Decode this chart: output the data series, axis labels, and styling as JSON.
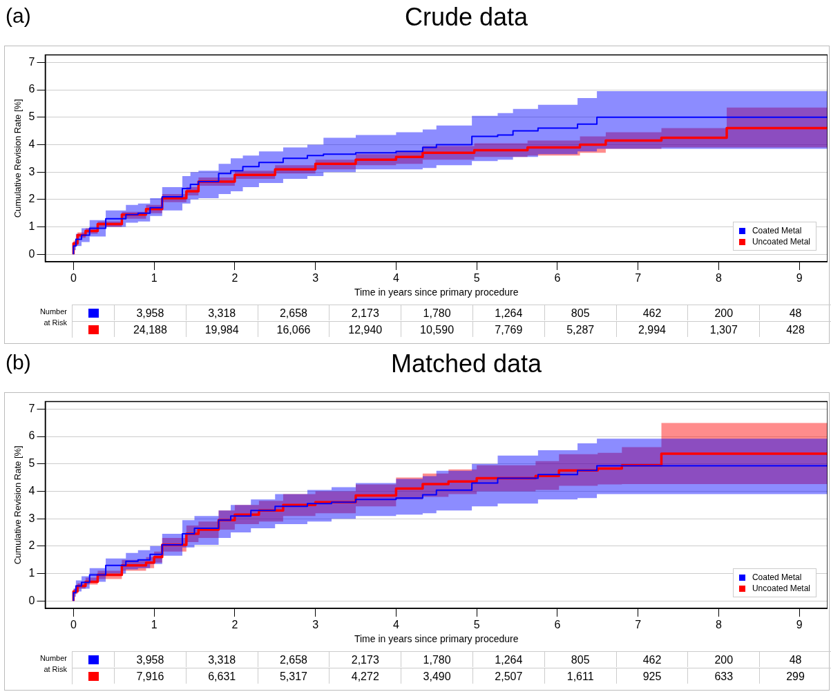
{
  "chart_data": [
    {
      "type": "step",
      "title": "Crude data",
      "xlabel": "Time in years since primary procedure",
      "ylabel": "Cumulative Revision Rate [%]",
      "xlim": [
        -0.35,
        9.35
      ],
      "xticks": [
        0,
        1,
        2,
        3,
        4,
        5,
        6,
        7,
        8,
        9
      ],
      "ylim": [
        -0.27,
        7.27
      ],
      "yticks": [
        0,
        1,
        2,
        3,
        4,
        5,
        6,
        7
      ],
      "grid": "y",
      "legend": "bottom right",
      "annotations": [
        "(a)",
        "Number at Risk",
        "3,958",
        "3,318",
        "2,658",
        "2,173",
        "1,780",
        "1,264",
        "805",
        "462",
        "200",
        "48",
        "24,188",
        "19,984",
        "16,066",
        "12,940",
        "10,590",
        "7,769",
        "5,287",
        "2,994",
        "1,307",
        "428"
      ],
      "series": [
        {
          "name": "Coated Metal",
          "color": "#0000ff",
          "x": [
            0,
            0.03,
            0.1,
            0.2,
            0.4,
            0.65,
            0.8,
            0.95,
            1.1,
            1.35,
            1.45,
            1.55,
            1.8,
            1.95,
            2.1,
            2.3,
            2.6,
            2.9,
            3.1,
            3.5,
            4.0,
            4.33,
            4.5,
            4.94,
            5.26,
            5.45,
            5.76,
            6.25,
            6.49,
            6.83,
            9.35
          ],
          "values": [
            0,
            0.3,
            0.55,
            0.7,
            0.95,
            1.3,
            1.45,
            1.5,
            1.7,
            2.1,
            2.4,
            2.55,
            2.65,
            2.95,
            3.05,
            3.2,
            3.35,
            3.5,
            3.6,
            3.65,
            3.7,
            3.75,
            3.9,
            4.0,
            4.3,
            4.35,
            4.5,
            4.6,
            4.75,
            5.0,
            5.0
          ],
          "lower": [
            0,
            0.15,
            0.3,
            0.45,
            0.65,
            1.0,
            1.15,
            1.2,
            1.4,
            1.6,
            1.85,
            2.0,
            2.05,
            2.2,
            2.3,
            2.45,
            2.6,
            2.75,
            2.85,
            3.0,
            3.1,
            3.1,
            3.15,
            3.25,
            3.4,
            3.45,
            3.55,
            3.65,
            3.75,
            3.85,
            3.85
          ],
          "upper": [
            0,
            0.45,
            0.75,
            0.95,
            1.25,
            1.6,
            1.8,
            1.85,
            2.05,
            2.45,
            2.85,
            3.0,
            3.05,
            3.3,
            3.5,
            3.6,
            3.75,
            3.9,
            4.0,
            4.25,
            4.35,
            4.45,
            4.55,
            4.7,
            5.05,
            5.15,
            5.3,
            5.45,
            5.7,
            5.95,
            5.95
          ]
        },
        {
          "name": "Uncoated Metal",
          "color": "#ff0000",
          "x": [
            0,
            0.05,
            0.15,
            0.3,
            0.6,
            0.9,
            1.1,
            1.4,
            1.55,
            2.0,
            2.5,
            3.0,
            3.5,
            4.0,
            4.33,
            4.97,
            5.63,
            6.28,
            6.6,
            7.29,
            8.1,
            9.3,
            9.35
          ],
          "values": [
            0,
            0.4,
            0.7,
            0.85,
            1.1,
            1.45,
            1.65,
            2.05,
            2.3,
            2.65,
            2.9,
            3.1,
            3.3,
            3.45,
            3.55,
            3.7,
            3.8,
            3.9,
            4.0,
            4.15,
            4.25,
            4.6,
            4.6
          ],
          "lower": [
            0,
            0.3,
            0.6,
            0.75,
            1.0,
            1.3,
            1.5,
            1.9,
            2.15,
            2.5,
            2.75,
            2.95,
            3.1,
            3.25,
            3.3,
            3.45,
            3.55,
            3.6,
            3.7,
            3.85,
            3.9,
            3.9,
            3.9
          ],
          "upper": [
            0,
            0.5,
            0.8,
            0.95,
            1.2,
            1.55,
            1.8,
            2.2,
            2.45,
            2.8,
            3.05,
            3.25,
            3.45,
            3.65,
            3.75,
            3.95,
            4.05,
            4.15,
            4.3,
            4.45,
            4.6,
            5.35,
            5.35
          ]
        }
      ]
    },
    {
      "type": "step",
      "title": "Matched data",
      "xlabel": "Time in years since primary procedure",
      "ylabel": "Cumulative Revision Rate [%]",
      "xlim": [
        -0.35,
        9.35
      ],
      "xticks": [
        0,
        1,
        2,
        3,
        4,
        5,
        6,
        7,
        8,
        9
      ],
      "ylim": [
        -0.27,
        7.27
      ],
      "yticks": [
        0,
        1,
        2,
        3,
        4,
        5,
        6,
        7
      ],
      "grid": "y",
      "legend": "bottom right",
      "annotations": [
        "(b)",
        "Number at Risk",
        "3,958",
        "3,318",
        "2,658",
        "2,173",
        "1,780",
        "1,264",
        "805",
        "462",
        "200",
        "48",
        "7,916",
        "6,631",
        "5,317",
        "4,272",
        "3,490",
        "2,507",
        "1,611",
        "925",
        "633",
        "299"
      ],
      "series": [
        {
          "name": "Coated Metal",
          "color": "#0000ff",
          "x": [
            0,
            0.03,
            0.1,
            0.2,
            0.4,
            0.65,
            0.8,
            0.95,
            1.1,
            1.35,
            1.5,
            1.8,
            1.95,
            2.2,
            2.5,
            2.9,
            3.2,
            3.5,
            4.0,
            4.33,
            4.5,
            4.94,
            5.26,
            5.76,
            6.25,
            6.49,
            6.83,
            9.35
          ],
          "values": [
            0,
            0.3,
            0.55,
            0.68,
            0.95,
            1.3,
            1.45,
            1.5,
            1.7,
            2.05,
            2.45,
            2.65,
            2.95,
            3.1,
            3.3,
            3.45,
            3.55,
            3.6,
            3.7,
            3.75,
            3.87,
            4.04,
            4.3,
            4.48,
            4.61,
            4.76,
            4.93,
            4.93
          ],
          "lower": [
            0,
            0.15,
            0.35,
            0.45,
            0.7,
            1.0,
            1.15,
            1.2,
            1.35,
            1.65,
            1.95,
            2.05,
            2.3,
            2.5,
            2.65,
            2.8,
            2.9,
            3.0,
            3.1,
            3.15,
            3.2,
            3.3,
            3.45,
            3.55,
            3.7,
            3.75,
            3.9,
            3.9
          ],
          "upper": [
            0,
            0.45,
            0.75,
            0.9,
            1.2,
            1.55,
            1.75,
            1.85,
            2.0,
            2.45,
            2.95,
            3.1,
            3.3,
            3.5,
            3.7,
            3.9,
            4.05,
            4.15,
            4.3,
            4.45,
            4.55,
            4.75,
            5.0,
            5.3,
            5.5,
            5.75,
            5.92,
            5.92
          ]
        },
        {
          "name": "Uncoated Metal",
          "color": "#ff0000",
          "x": [
            0,
            0.05,
            0.15,
            0.3,
            0.6,
            0.9,
            1.0,
            1.1,
            1.4,
            1.55,
            1.8,
            2.0,
            2.3,
            2.6,
            3.0,
            3.5,
            4.0,
            4.33,
            4.65,
            5.0,
            5.73,
            6.02,
            6.5,
            6.8,
            7.29,
            9.3,
            9.35
          ],
          "values": [
            0,
            0.35,
            0.55,
            0.7,
            0.95,
            1.3,
            1.4,
            1.6,
            2.05,
            2.45,
            2.6,
            2.95,
            3.15,
            3.3,
            3.5,
            3.6,
            3.85,
            4.1,
            4.26,
            4.36,
            4.48,
            4.56,
            4.76,
            4.83,
            4.95,
            5.37,
            5.37
          ],
          "lower": [
            0,
            0.25,
            0.45,
            0.6,
            0.8,
            1.1,
            1.2,
            1.4,
            1.8,
            2.15,
            2.3,
            2.6,
            2.8,
            2.9,
            3.1,
            3.2,
            3.45,
            3.7,
            3.8,
            3.9,
            4.0,
            4.05,
            4.2,
            4.25,
            4.26,
            4.26,
            4.26
          ],
          "upper": [
            0,
            0.45,
            0.65,
            0.85,
            1.1,
            1.5,
            1.6,
            1.8,
            2.3,
            2.75,
            2.9,
            3.3,
            3.5,
            3.65,
            3.9,
            4.0,
            4.25,
            4.5,
            4.65,
            4.8,
            4.95,
            5.1,
            5.35,
            5.4,
            5.61,
            6.49,
            6.49
          ]
        }
      ]
    }
  ]
}
